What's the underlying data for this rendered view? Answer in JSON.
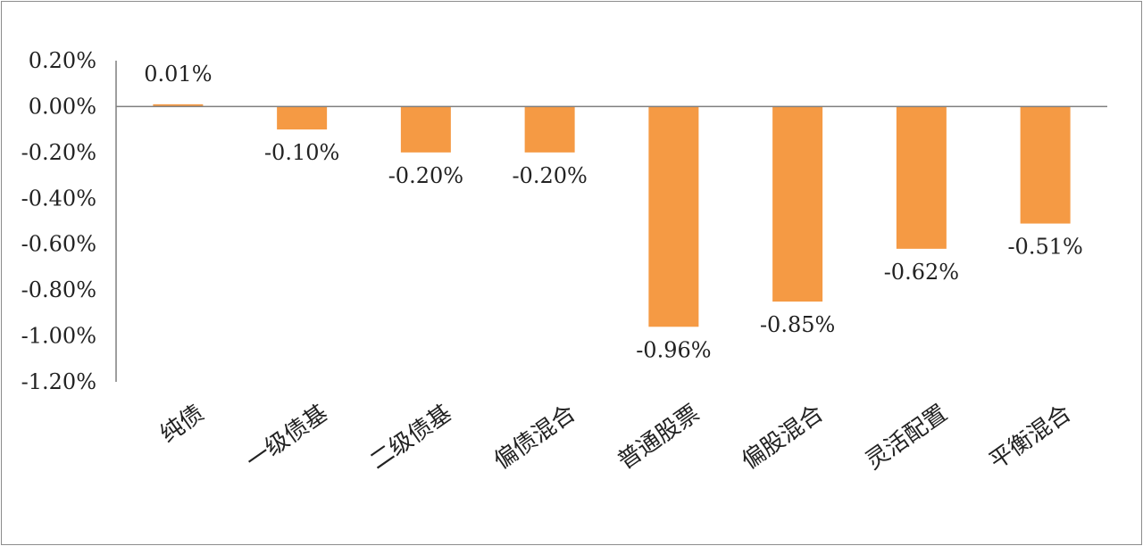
{
  "chart_data": {
    "type": "bar",
    "title": "",
    "xlabel": "",
    "ylabel": "",
    "categories": [
      "纯债",
      "一级债基",
      "二级债基",
      "偏债混合",
      "普通股票",
      "偏股混合",
      "灵活配置",
      "平衡混合"
    ],
    "values": [
      0.01,
      -0.1,
      -0.2,
      -0.2,
      -0.96,
      -0.85,
      -0.62,
      -0.51
    ],
    "data_labels": [
      "0.01%",
      "-0.10%",
      "-0.20%",
      "-0.20%",
      "-0.96%",
      "-0.85%",
      "-0.62%",
      "-0.51%"
    ],
    "ylim": [
      -1.2,
      0.2
    ],
    "yticks": [
      0.2,
      0.0,
      -0.2,
      -0.4,
      -0.6,
      -0.8,
      -1.0,
      -1.2
    ],
    "ytick_labels": [
      "0.20%",
      "0.00%",
      "-0.20%",
      "-0.40%",
      "-0.60%",
      "-0.80%",
      "-1.00%",
      "-1.20%"
    ],
    "bar_color": "#F59A44",
    "axis_color": "#7f7f7f",
    "grid": false,
    "legend": "none"
  }
}
